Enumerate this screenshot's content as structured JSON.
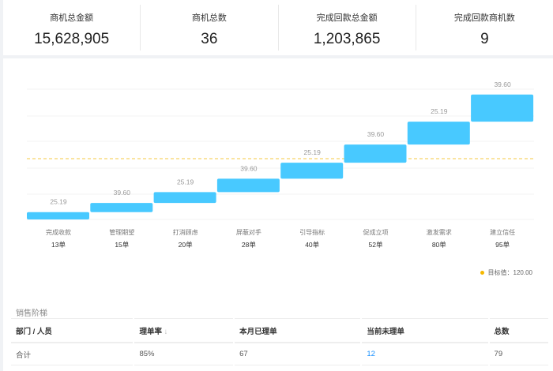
{
  "stats": [
    {
      "label": "商机总金额",
      "value": "15,628,905"
    },
    {
      "label": "商机总数",
      "value": "36"
    },
    {
      "label": "完成回款总金额",
      "value": "1,203,865"
    },
    {
      "label": "完成回款商机数",
      "value": "9"
    }
  ],
  "chart_data": {
    "type": "bar",
    "categories": [
      "完成收款",
      "管理期望",
      "打消顾虑",
      "屏蔽对手",
      "引导指标",
      "促成立项",
      "激发需求",
      "建立信任"
    ],
    "counts": [
      "13单",
      "15单",
      "20单",
      "28单",
      "40单",
      "52单",
      "80单",
      "95单"
    ],
    "values": [
      25.19,
      39.6,
      25.19,
      39.6,
      25.19,
      39.6,
      25.19,
      39.6
    ],
    "value_labels": [
      "25.19",
      "39.60",
      "25.19",
      "39.60",
      "25.19",
      "39.60",
      "25.19",
      "39.60"
    ],
    "bar_color": "#48c9ff",
    "target": {
      "label": "目标值：120.00",
      "value": 120.0,
      "color": "#f5c842"
    },
    "grid": true
  },
  "section_title": "销售阶梯",
  "table": {
    "headers": [
      "部门 / 人员",
      "理单率",
      "本月已理单",
      "当前未理单",
      "总数"
    ],
    "sort_icon": "↓",
    "rows": [
      [
        "合计",
        "85%",
        "67",
        "12",
        "79"
      ]
    ]
  }
}
